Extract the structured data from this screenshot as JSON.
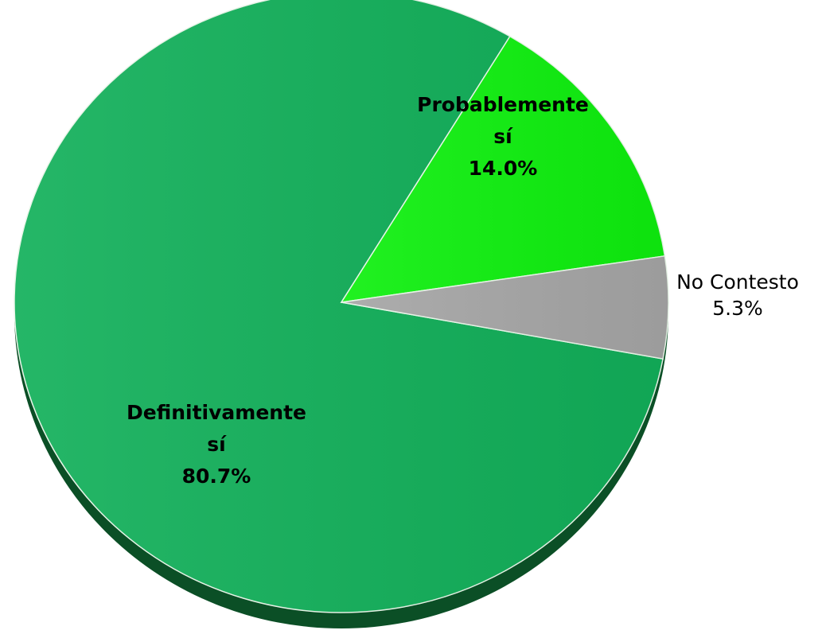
{
  "chart_data": {
    "type": "pie",
    "categories": [
      "Definitivamente sí",
      "Probablemente sí",
      "No Contesto"
    ],
    "values": [
      80.7,
      14.0,
      5.3
    ],
    "value_labels": [
      "80.7%",
      "14.0%",
      "5.3%"
    ],
    "colors": [
      "#12b05a",
      "#0ef00e",
      "#a6a6a6"
    ]
  }
}
